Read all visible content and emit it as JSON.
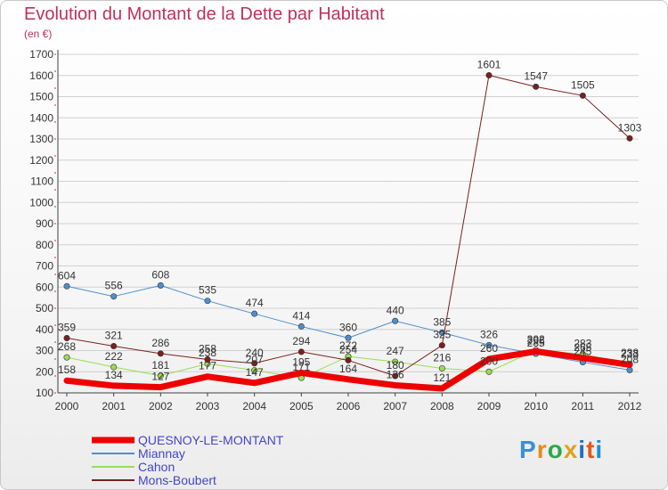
{
  "title": "Evolution du Montant de la Dette par Habitant",
  "unit_label": "(en €)",
  "logo": "Proxiti",
  "colors": {
    "title": "#c0305a",
    "grid": "#d0d0d0",
    "axis": "#404040"
  },
  "chart_data": {
    "type": "line",
    "title": "Evolution du Montant de la Dette par Habitant",
    "ylabel": "(en €)",
    "ylim": [
      100,
      1700
    ],
    "yticks": [
      100,
      200,
      300,
      400,
      500,
      600,
      700,
      800,
      900,
      1000,
      1100,
      1200,
      1300,
      1400,
      1500,
      1600,
      1700
    ],
    "categories": [
      "2000",
      "2001",
      "2002",
      "2003",
      "2004",
      "2005",
      "2006",
      "2007",
      "2008",
      "2009",
      "2010",
      "2011",
      "2012"
    ],
    "grid": "horizontal",
    "legend": "bottom-left",
    "series": [
      {
        "name": "QUESNOY-LE-MONTANT",
        "color": "#ee0000",
        "width": 7,
        "values": [
          158,
          134,
          127,
          177,
          147,
          195,
          164,
          136,
          121,
          260,
          296,
          265,
          233
        ]
      },
      {
        "name": "Miannay",
        "color": "#4f8fcf",
        "width": 1,
        "values": [
          604,
          556,
          608,
          535,
          474,
          414,
          360,
          440,
          385,
          326,
          285,
          245,
          208
        ]
      },
      {
        "name": "Cahon",
        "color": "#99dd55",
        "width": 1,
        "values": [
          268,
          222,
          181,
          238,
          207,
          171,
          272,
          247,
          216,
          200,
          302,
          283,
          238
        ]
      },
      {
        "name": "Mons-Boubert",
        "color": "#7a2020",
        "width": 1,
        "values": [
          359,
          321,
          286,
          258,
          240,
          294,
          254,
          180,
          325,
          1601,
          1547,
          1505,
          1303
        ]
      }
    ],
    "data_labels": [
      [
        "158",
        "134",
        "127",
        "177",
        "147",
        "195",
        "164",
        "136",
        "121",
        "260",
        "296",
        "265",
        "233"
      ],
      [
        "604",
        "556",
        "608",
        "535",
        "474",
        "414",
        "360",
        "440",
        "385",
        "326",
        "285",
        "245",
        "208"
      ],
      [
        "268",
        "222",
        "181",
        "238",
        "207",
        "171",
        "272",
        "247",
        "216",
        "200",
        "302",
        "283",
        "238"
      ],
      [
        "359",
        "321",
        "286",
        "258",
        "240",
        "294",
        "254",
        "180",
        "325",
        "1601",
        "1547",
        "1505",
        "1303"
      ]
    ]
  }
}
